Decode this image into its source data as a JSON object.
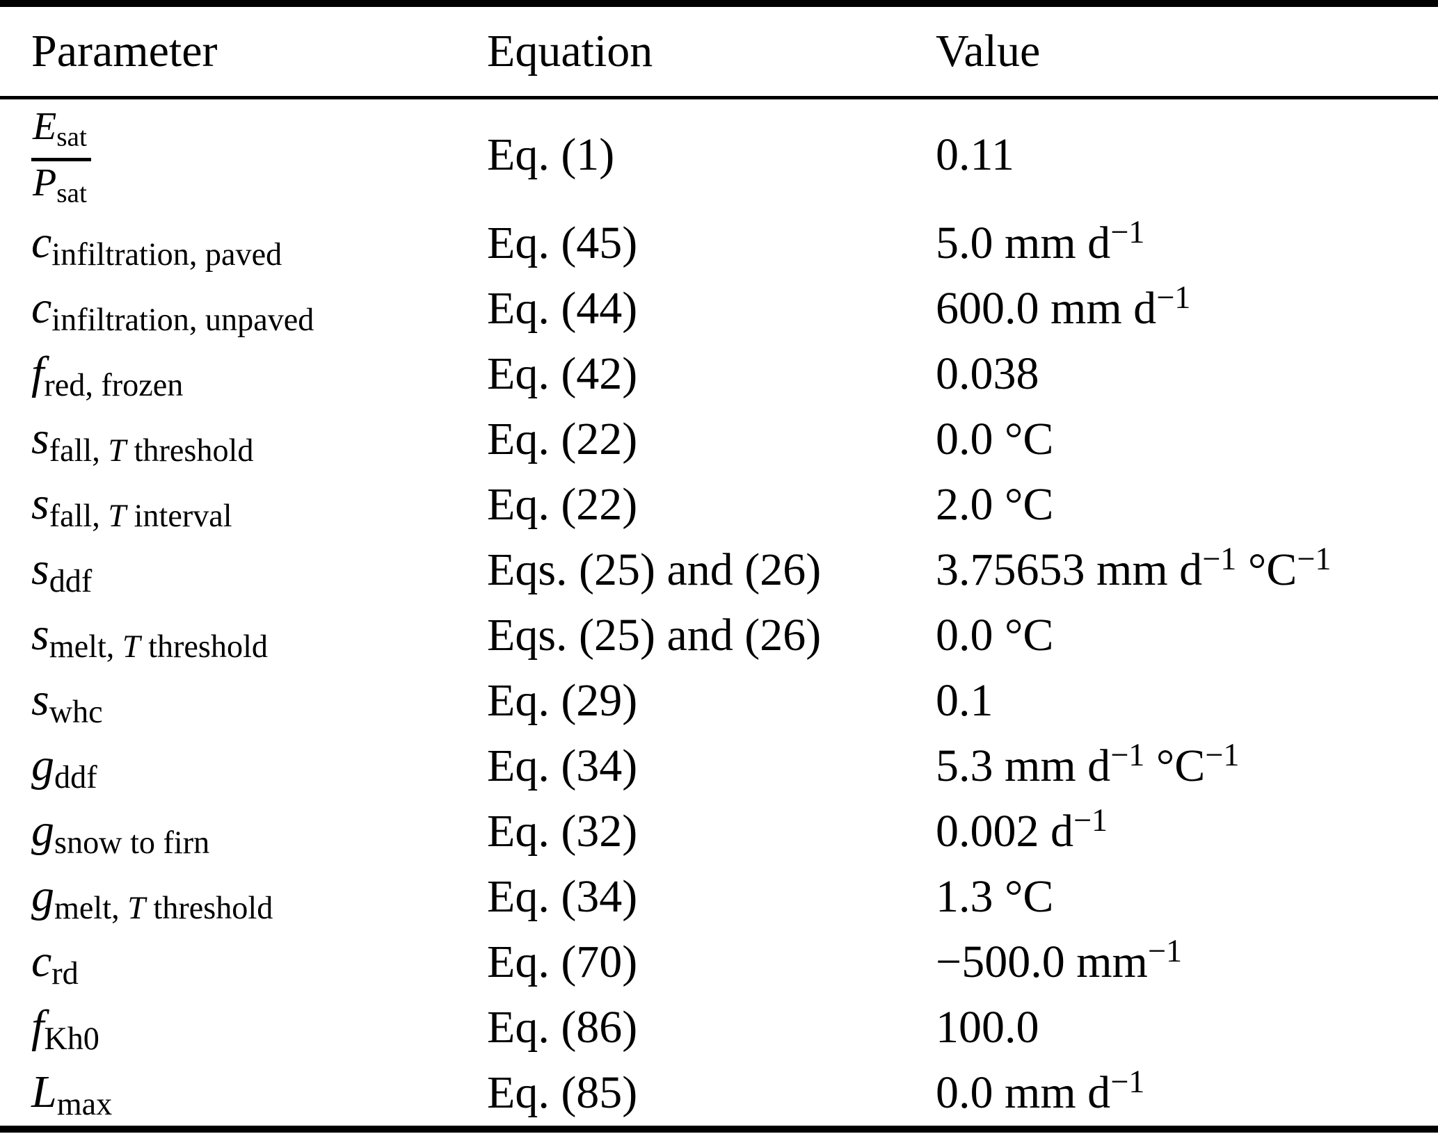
{
  "table": {
    "headers": [
      "Parameter",
      "Equation",
      "Value"
    ],
    "rows": [
      {
        "param": {
          "frac": {
            "num": {
              "sym": "E",
              "sub": "sat"
            },
            "den": {
              "sym": "P",
              "sub": "sat"
            }
          }
        },
        "equation": "Eq. (1)",
        "value": [
          {
            "t": "0.11"
          }
        ]
      },
      {
        "param": {
          "sym": "c",
          "sub": [
            {
              "t": "infiltration, paved"
            }
          ]
        },
        "equation": "Eq. (45)",
        "value": [
          {
            "t": "5.0 mm d"
          },
          {
            "t": "−1",
            "sup": true
          }
        ]
      },
      {
        "param": {
          "sym": "c",
          "sub": [
            {
              "t": "infiltration, unpaved"
            }
          ]
        },
        "equation": "Eq. (44)",
        "value": [
          {
            "t": "600.0 mm d"
          },
          {
            "t": "−1",
            "sup": true
          }
        ]
      },
      {
        "param": {
          "sym": "f",
          "sub": [
            {
              "t": "red, frozen"
            }
          ]
        },
        "equation": "Eq. (42)",
        "value": [
          {
            "t": "0.038"
          }
        ]
      },
      {
        "param": {
          "sym": "s",
          "sub": [
            {
              "t": "fall, "
            },
            {
              "t": "T",
              "i": true
            },
            {
              "t": " threshold"
            }
          ]
        },
        "equation": "Eq. (22)",
        "value": [
          {
            "t": "0.0 °C"
          }
        ]
      },
      {
        "param": {
          "sym": "s",
          "sub": [
            {
              "t": "fall, "
            },
            {
              "t": "T",
              "i": true
            },
            {
              "t": " interval"
            }
          ]
        },
        "equation": "Eq. (22)",
        "value": [
          {
            "t": "2.0 °C"
          }
        ]
      },
      {
        "param": {
          "sym": "s",
          "sub": [
            {
              "t": "ddf"
            }
          ]
        },
        "equation": "Eqs. (25) and (26)",
        "value": [
          {
            "t": "3.75653 mm d"
          },
          {
            "t": "−1",
            "sup": true
          },
          {
            "t": " °C"
          },
          {
            "t": "−1",
            "sup": true
          }
        ]
      },
      {
        "param": {
          "sym": "s",
          "sub": [
            {
              "t": "melt, "
            },
            {
              "t": "T",
              "i": true
            },
            {
              "t": " threshold"
            }
          ]
        },
        "equation": "Eqs. (25) and (26)",
        "value": [
          {
            "t": "0.0 °C"
          }
        ]
      },
      {
        "param": {
          "sym": "s",
          "sub": [
            {
              "t": "whc"
            }
          ]
        },
        "equation": "Eq. (29)",
        "value": [
          {
            "t": "0.1"
          }
        ]
      },
      {
        "param": {
          "sym": "g",
          "sub": [
            {
              "t": "ddf"
            }
          ]
        },
        "equation": "Eq. (34)",
        "value": [
          {
            "t": "5.3 mm d"
          },
          {
            "t": "−1",
            "sup": true
          },
          {
            "t": " °C"
          },
          {
            "t": "−1",
            "sup": true
          }
        ]
      },
      {
        "param": {
          "sym": "g",
          "sub": [
            {
              "t": "snow to firn"
            }
          ]
        },
        "equation": "Eq. (32)",
        "value": [
          {
            "t": "0.002 d"
          },
          {
            "t": "−1",
            "sup": true
          }
        ]
      },
      {
        "param": {
          "sym": "g",
          "sub": [
            {
              "t": "melt, "
            },
            {
              "t": "T",
              "i": true
            },
            {
              "t": " threshold"
            }
          ]
        },
        "equation": "Eq. (34)",
        "value": [
          {
            "t": "1.3 °C"
          }
        ]
      },
      {
        "param": {
          "sym": "c",
          "sub": [
            {
              "t": "rd"
            }
          ]
        },
        "equation": "Eq. (70)",
        "value": [
          {
            "t": "−500.0 mm"
          },
          {
            "t": "−1",
            "sup": true
          }
        ]
      },
      {
        "param": {
          "sym": "f",
          "sub": [
            {
              "t": "Kh0"
            }
          ]
        },
        "equation": "Eq. (86)",
        "value": [
          {
            "t": "100.0"
          }
        ]
      },
      {
        "param": {
          "sym": "L",
          "sub": [
            {
              "t": "max"
            }
          ]
        },
        "equation": "Eq. (85)",
        "value": [
          {
            "t": "0.0 mm d"
          },
          {
            "t": "−1",
            "sup": true
          }
        ]
      }
    ]
  }
}
